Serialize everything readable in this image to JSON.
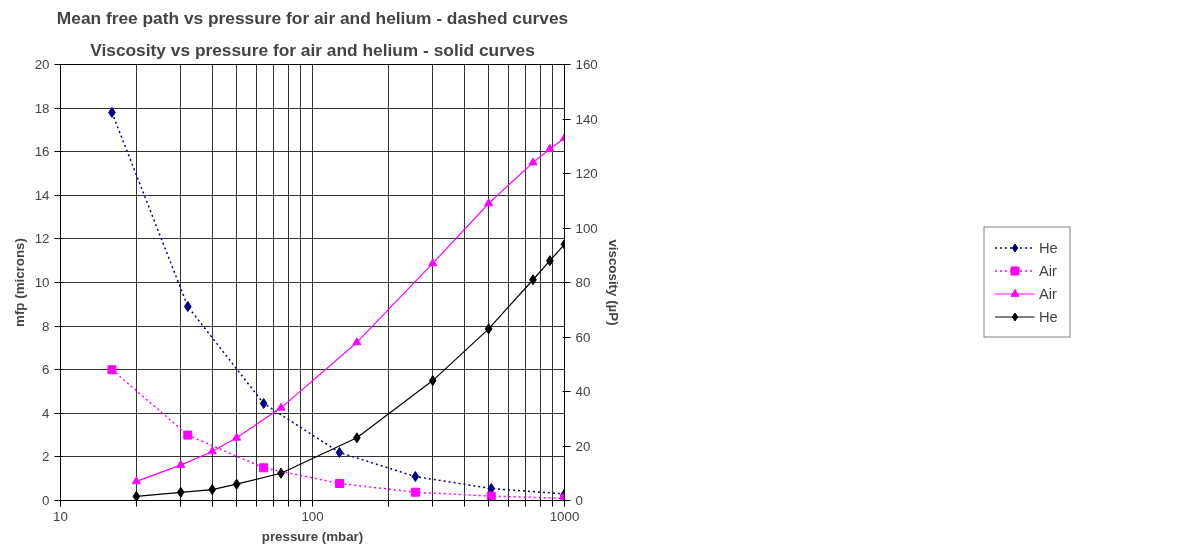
{
  "chart_data": {
    "type": "line",
    "title": "Mean free path vs pressure for air and helium - dashed curves",
    "subtitle": "Viscosity vs pressure for air and helium - solid curves",
    "xlabel": "pressure (mbar)",
    "ylabel": "mfp (microns)",
    "y2label": "viscosity (µP)",
    "log": "x",
    "xlim": [
      10,
      1000
    ],
    "xticks": [
      10,
      {
        "value": 20,
        "label": null
      },
      {
        "value": 30,
        "label": null
      },
      {
        "value": 40,
        "label": null
      },
      {
        "value": 50,
        "label": null
      },
      {
        "value": 60,
        "label": null
      },
      {
        "value": 70,
        "label": null
      },
      {
        "value": 80,
        "label": null
      },
      {
        "value": 90,
        "label": null
      },
      100,
      {
        "value": 200,
        "label": null
      },
      {
        "value": 300,
        "label": null
      },
      {
        "value": 400,
        "label": null
      },
      {
        "value": 500,
        "label": null
      },
      {
        "value": 600,
        "label": null
      },
      {
        "value": 700,
        "label": null
      },
      {
        "value": 800,
        "label": null
      },
      {
        "value": 900,
        "label": null
      },
      1000
    ],
    "ylim": [
      0,
      20
    ],
    "yticks": [
      0,
      2,
      4,
      6,
      8,
      10,
      12,
      14,
      16,
      18,
      20
    ],
    "y2lim": [
      0,
      160
    ],
    "y2ticks": [
      0,
      20,
      40,
      60,
      80,
      100,
      120,
      140,
      160
    ],
    "grid": true,
    "legend": "right",
    "series": [
      {
        "name": "He",
        "color": "#000080",
        "marker": "diamond",
        "line_style": "dotted",
        "x": [
          16,
          32,
          64,
          128,
          256,
          512,
          1000
        ],
        "values": [
          17.8,
          8.9,
          4.45,
          2.2,
          1.1,
          0.55,
          0.3
        ]
      },
      {
        "name": "Air",
        "color": "#ff00ff",
        "marker": "square",
        "line_style": "dotted",
        "x": [
          16,
          32,
          64,
          128,
          256,
          512,
          1000
        ],
        "values": [
          6.0,
          3.0,
          1.5,
          0.78,
          0.38,
          0.2,
          0.1
        ]
      },
      {
        "name": "Air",
        "color": "#ff00ff",
        "marker": "triangle",
        "line_style": "solid",
        "axis": "y2",
        "x": [
          20,
          30,
          40,
          50,
          75,
          150,
          300,
          500,
          750,
          875,
          1000
        ],
        "values": [
          7,
          13,
          18,
          23,
          34,
          58,
          87,
          109,
          124,
          129,
          133
        ]
      },
      {
        "name": "He",
        "color": "#000000",
        "marker": "diamond",
        "line_style": "solid",
        "axis": "y2",
        "x": [
          20,
          30,
          40,
          50,
          75,
          150,
          300,
          500,
          750,
          875,
          1000
        ],
        "values": [
          1.5,
          3,
          4,
          6,
          10,
          23,
          44,
          63,
          81,
          88,
          94
        ]
      }
    ]
  }
}
